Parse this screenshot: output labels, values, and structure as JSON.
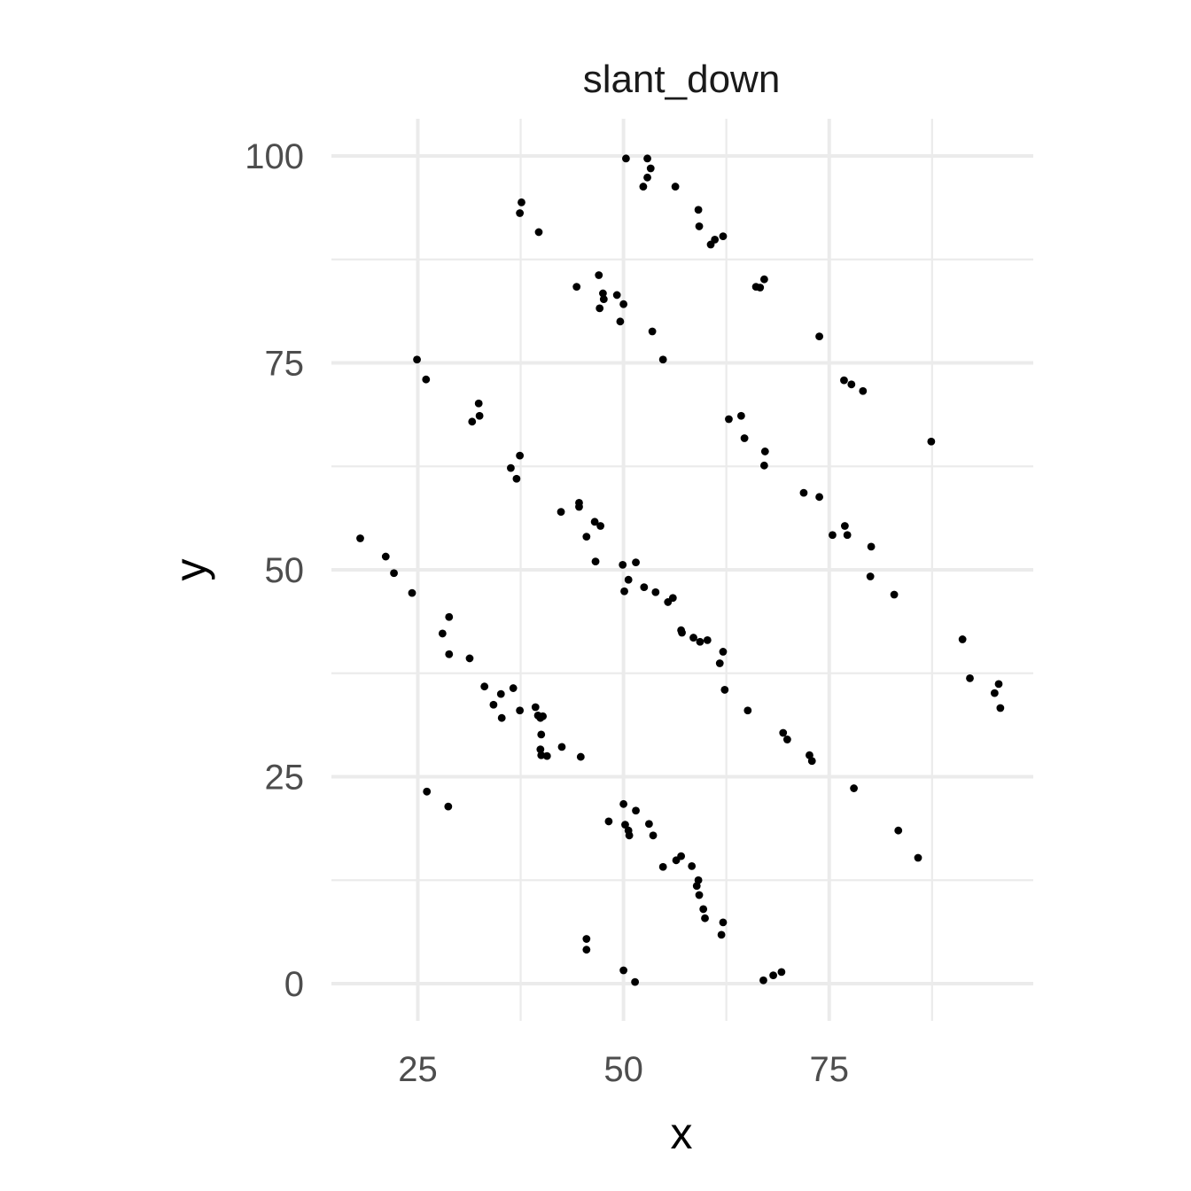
{
  "chart_data": {
    "type": "scatter",
    "title": "slant_down",
    "xlabel": "x",
    "ylabel": "y",
    "xlim": [
      14.5,
      99.8
    ],
    "ylim": [
      -4.5,
      104.5
    ],
    "x_ticks": [
      25,
      50,
      75
    ],
    "x_tick_labels": [
      "25",
      "50",
      "75"
    ],
    "x_minor_ticks": [
      37.5,
      62.5,
      87.5
    ],
    "y_ticks": [
      0,
      25,
      50,
      75,
      100
    ],
    "y_tick_labels": [
      "0",
      "25",
      "50",
      "75",
      "100"
    ],
    "y_minor_ticks": [
      12.5,
      37.5,
      62.5,
      87.5
    ],
    "grid": true,
    "legend": "none",
    "point_color": "#000000",
    "grid_color": "#ebebeb",
    "points": [
      [
        50.3,
        99.7
      ],
      [
        52.9,
        99.7
      ],
      [
        53.3,
        98.5
      ],
      [
        52.9,
        97.4
      ],
      [
        52.4,
        96.3
      ],
      [
        56.3,
        96.3
      ],
      [
        37.6,
        94.4
      ],
      [
        37.4,
        93.1
      ],
      [
        59.1,
        93.5
      ],
      [
        59.2,
        91.5
      ],
      [
        39.7,
        90.8
      ],
      [
        62.1,
        90.3
      ],
      [
        61.1,
        89.9
      ],
      [
        60.6,
        89.3
      ],
      [
        47.0,
        85.6
      ],
      [
        67.1,
        85.1
      ],
      [
        44.3,
        84.2
      ],
      [
        66.1,
        84.2
      ],
      [
        66.6,
        84.1
      ],
      [
        49.2,
        83.2
      ],
      [
        47.5,
        83.4
      ],
      [
        47.6,
        82.7
      ],
      [
        50.0,
        82.1
      ],
      [
        47.1,
        81.6
      ],
      [
        49.6,
        80.0
      ],
      [
        53.5,
        78.8
      ],
      [
        73.8,
        78.2
      ],
      [
        54.8,
        75.4
      ],
      [
        24.9,
        75.4
      ],
      [
        26.0,
        73.0
      ],
      [
        76.8,
        72.9
      ],
      [
        77.7,
        72.4
      ],
      [
        79.1,
        71.6
      ],
      [
        32.4,
        70.1
      ],
      [
        32.5,
        68.6
      ],
      [
        64.3,
        68.6
      ],
      [
        62.8,
        68.2
      ],
      [
        31.6,
        67.9
      ],
      [
        87.4,
        65.5
      ],
      [
        64.7,
        65.9
      ],
      [
        67.2,
        64.3
      ],
      [
        37.4,
        63.8
      ],
      [
        36.3,
        62.3
      ],
      [
        67.1,
        62.6
      ],
      [
        37.0,
        61.0
      ],
      [
        71.9,
        59.3
      ],
      [
        73.8,
        58.8
      ],
      [
        44.6,
        58.1
      ],
      [
        44.6,
        57.6
      ],
      [
        42.4,
        57.0
      ],
      [
        46.5,
        55.8
      ],
      [
        76.9,
        55.3
      ],
      [
        47.2,
        55.3
      ],
      [
        75.4,
        54.2
      ],
      [
        77.2,
        54.2
      ],
      [
        45.5,
        54.0
      ],
      [
        18.0,
        53.8
      ],
      [
        80.1,
        52.8
      ],
      [
        21.1,
        51.6
      ],
      [
        46.6,
        51.0
      ],
      [
        51.5,
        50.9
      ],
      [
        49.9,
        50.6
      ],
      [
        22.1,
        49.6
      ],
      [
        80.0,
        49.2
      ],
      [
        50.6,
        48.8
      ],
      [
        52.5,
        47.9
      ],
      [
        50.1,
        47.4
      ],
      [
        24.3,
        47.2
      ],
      [
        53.9,
        47.3
      ],
      [
        82.9,
        47.0
      ],
      [
        56.0,
        46.6
      ],
      [
        55.4,
        46.1
      ],
      [
        57.0,
        42.7
      ],
      [
        57.1,
        42.4
      ],
      [
        28.8,
        44.3
      ],
      [
        28.0,
        42.3
      ],
      [
        91.2,
        41.6
      ],
      [
        58.5,
        41.8
      ],
      [
        60.2,
        41.5
      ],
      [
        59.3,
        41.3
      ],
      [
        62.1,
        40.1
      ],
      [
        28.8,
        39.8
      ],
      [
        31.3,
        39.3
      ],
      [
        61.7,
        38.7
      ],
      [
        92.1,
        36.9
      ],
      [
        95.6,
        36.2
      ],
      [
        33.1,
        35.9
      ],
      [
        36.6,
        35.7
      ],
      [
        62.3,
        35.5
      ],
      [
        35.1,
        35.0
      ],
      [
        95.1,
        35.1
      ],
      [
        34.2,
        33.7
      ],
      [
        95.8,
        33.3
      ],
      [
        39.3,
        33.4
      ],
      [
        37.4,
        33.0
      ],
      [
        65.1,
        33.0
      ],
      [
        39.6,
        32.4
      ],
      [
        40.2,
        32.3
      ],
      [
        35.2,
        32.1
      ],
      [
        39.9,
        32.1
      ],
      [
        69.4,
        30.3
      ],
      [
        40.0,
        30.1
      ],
      [
        69.9,
        29.5
      ],
      [
        42.5,
        28.6
      ],
      [
        39.9,
        28.3
      ],
      [
        40.0,
        27.6
      ],
      [
        40.7,
        27.5
      ],
      [
        44.8,
        27.4
      ],
      [
        72.6,
        27.6
      ],
      [
        72.9,
        26.9
      ],
      [
        78.0,
        23.6
      ],
      [
        26.1,
        23.2
      ],
      [
        28.7,
        21.4
      ],
      [
        50.0,
        21.7
      ],
      [
        51.5,
        20.9
      ],
      [
        48.2,
        19.6
      ],
      [
        50.2,
        19.2
      ],
      [
        53.1,
        19.3
      ],
      [
        50.6,
        18.5
      ],
      [
        83.4,
        18.5
      ],
      [
        50.7,
        17.9
      ],
      [
        53.6,
        17.9
      ],
      [
        57.0,
        15.4
      ],
      [
        56.4,
        14.9
      ],
      [
        85.8,
        15.2
      ],
      [
        58.3,
        14.2
      ],
      [
        54.8,
        14.1
      ],
      [
        59.1,
        12.5
      ],
      [
        58.9,
        11.8
      ],
      [
        59.2,
        10.7
      ],
      [
        59.7,
        9.0
      ],
      [
        59.9,
        7.9
      ],
      [
        62.1,
        7.4
      ],
      [
        45.5,
        5.4
      ],
      [
        61.9,
        5.9
      ],
      [
        45.5,
        4.1
      ],
      [
        50.0,
        1.6
      ],
      [
        69.2,
        1.4
      ],
      [
        68.2,
        1.0
      ],
      [
        67.0,
        0.4
      ],
      [
        51.4,
        0.2
      ]
    ]
  }
}
